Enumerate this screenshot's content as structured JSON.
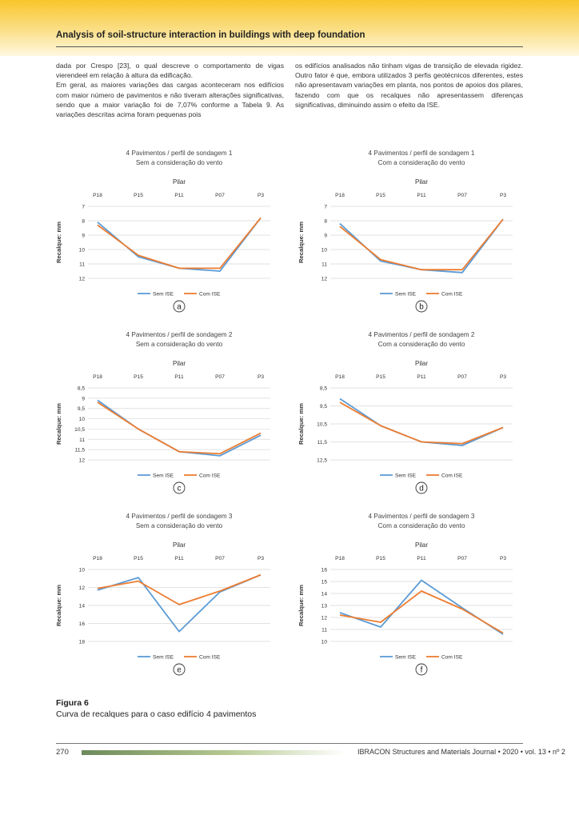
{
  "header": {
    "journal_title": "Analysis of soil-structure interaction in buildings with deep foundation"
  },
  "body_text": {
    "left": [
      "dada por Crespo [23], o qual descreve o comportamento de vigas vierendeel em relação à altura da edificação.",
      "Em geral, as maiores variações das cargas aconteceram nos edifícios com maior número de pavimentos e não tiveram alterações significativas, sendo que a maior variação foi de 7,07% conforme a Tabela 9. As variações descritas acima foram pequenas pois"
    ],
    "right": [
      "os edifícios analisados não tinham vigas de transição de elevada rigidez. Outro fator é que, embora utilizados 3 perfis geotécnicos diferentes, estes não apresentavam variações em planta, nos pontos de apoios dos pilares, fazendo com que os recalques não apresentassem diferenças significativas, diminuindo assim o efeito da ISE."
    ]
  },
  "colors": {
    "sem_ise": "#5b9bd5",
    "com_ise": "#ed7d31",
    "grid": "#d9d9d9"
  },
  "chart_data": [
    {
      "type": "line",
      "panel": "a",
      "title": [
        "4 Pavimentos / perfil de sondagem 1",
        "Sem a consideração do vento"
      ],
      "xlabel": "Pilar",
      "ylabel": "Recalque: mm",
      "categories": [
        "P18",
        "P15",
        "P11",
        "P07",
        "P3"
      ],
      "ylim": [
        7,
        12
      ],
      "yticks": [
        "7",
        "8",
        "9",
        "10",
        "11",
        "12"
      ],
      "inverted": true,
      "series": [
        {
          "name": "Sem ISE",
          "values": [
            8.1,
            10.5,
            11.3,
            11.5,
            7.8
          ]
        },
        {
          "name": "Com ISE",
          "values": [
            8.3,
            10.4,
            11.3,
            11.3,
            7.8
          ]
        }
      ]
    },
    {
      "type": "line",
      "panel": "b",
      "title": [
        "4 Pavimentos / perfil de sondagem 1",
        "Com a consideração do vento"
      ],
      "xlabel": "Pilar",
      "ylabel": "Recalque: mm",
      "categories": [
        "P18",
        "P15",
        "P11",
        "P07",
        "P3"
      ],
      "ylim": [
        7,
        12
      ],
      "yticks": [
        "7",
        "8",
        "9",
        "10",
        "11",
        "12"
      ],
      "inverted": true,
      "series": [
        {
          "name": "Sem ISE",
          "values": [
            8.2,
            10.8,
            11.4,
            11.6,
            7.9
          ]
        },
        {
          "name": "Com ISE",
          "values": [
            8.4,
            10.7,
            11.4,
            11.4,
            7.9
          ]
        }
      ]
    },
    {
      "type": "line",
      "panel": "c",
      "title": [
        "4 Pavimentos / perfil de sondagem 2",
        "Sem a consideração do vento"
      ],
      "xlabel": "Pilar",
      "ylabel": "Recalque: mm",
      "categories": [
        "P18",
        "P15",
        "P11",
        "P07",
        "P3"
      ],
      "ylim": [
        8.5,
        12
      ],
      "yticks": [
        "8,5",
        "9",
        "9,5",
        "10",
        "10,5",
        "11",
        "11,5",
        "12"
      ],
      "inverted": true,
      "series": [
        {
          "name": "Sem ISE",
          "values": [
            9.1,
            10.5,
            11.6,
            11.8,
            10.8
          ]
        },
        {
          "name": "Com ISE",
          "values": [
            9.2,
            10.5,
            11.6,
            11.7,
            10.7
          ]
        }
      ]
    },
    {
      "type": "line",
      "panel": "d",
      "title": [
        "4 Pavimentos / perfil de sondagem 2",
        "Com a consideração do vento"
      ],
      "xlabel": "Pilar",
      "ylabel": "Recalque: mm",
      "categories": [
        "P18",
        "P15",
        "P11",
        "P07",
        "P3"
      ],
      "ylim": [
        8.5,
        12.5
      ],
      "yticks": [
        "8,5",
        "9,5",
        "10,5",
        "11,5",
        "12,5"
      ],
      "inverted": true,
      "series": [
        {
          "name": "Sem ISE",
          "values": [
            9.1,
            10.6,
            11.5,
            11.7,
            10.7
          ]
        },
        {
          "name": "Com ISE",
          "values": [
            9.3,
            10.6,
            11.5,
            11.6,
            10.7
          ]
        }
      ]
    },
    {
      "type": "line",
      "panel": "e",
      "title": [
        "4 Pavimentos / perfil de sondagem 3",
        "Sem a consideração do vento"
      ],
      "xlabel": "Pilar",
      "ylabel": "Recalque: mm",
      "categories": [
        "P18",
        "P15",
        "P11",
        "P07",
        "P3"
      ],
      "ylim": [
        10,
        18
      ],
      "yticks": [
        "10",
        "12",
        "14",
        "16",
        "18"
      ],
      "inverted": true,
      "series": [
        {
          "name": "Sem ISE",
          "values": [
            12.3,
            10.9,
            16.9,
            12.5,
            10.6
          ]
        },
        {
          "name": "Com ISE",
          "values": [
            12.1,
            11.3,
            13.9,
            12.4,
            10.6
          ]
        }
      ]
    },
    {
      "type": "line",
      "panel": "f",
      "title": [
        "4 Pavimentos / perfil de sondagem 3",
        "Com a consideração do vento"
      ],
      "xlabel": "Pilar",
      "ylabel": "Recalque: mm",
      "categories": [
        "P18",
        "P15",
        "P11",
        "P07",
        "P3"
      ],
      "ylim": [
        10,
        16
      ],
      "yticks": [
        "10",
        "11",
        "12",
        "13",
        "14",
        "15",
        "16"
      ],
      "inverted": false,
      "series": [
        {
          "name": "Sem ISE",
          "values": [
            12.4,
            11.2,
            15.1,
            12.8,
            10.6
          ]
        },
        {
          "name": "Com ISE",
          "values": [
            12.2,
            11.6,
            14.2,
            12.7,
            10.7
          ]
        }
      ]
    }
  ],
  "figure": {
    "label": "Figura 6",
    "caption": "Curva de recalques para o caso edifício 4 pavimentos"
  },
  "footer": {
    "page_number": "270",
    "journal": "IBRACON Structures and Materials Journal • 2020 • vol. 13 • nº 2"
  }
}
